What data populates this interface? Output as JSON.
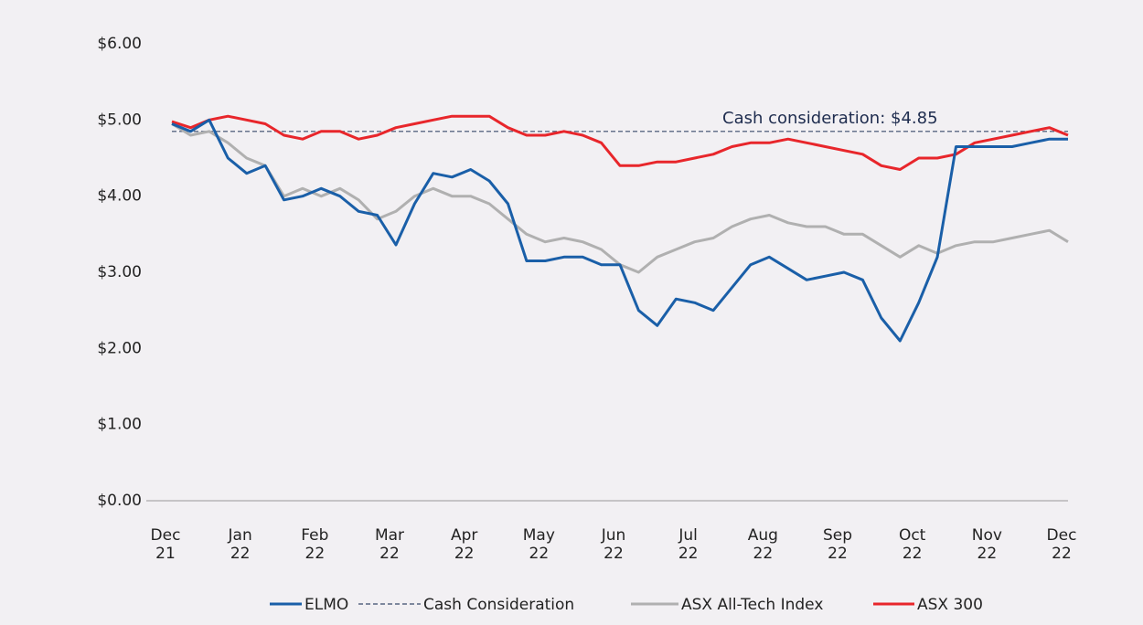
{
  "chart_data": {
    "type": "line",
    "annotation": "Cash consideration: $4.85",
    "categories": [
      "Dec 21",
      null,
      null,
      null,
      "Jan 22",
      null,
      null,
      null,
      "Feb 22",
      null,
      null,
      null,
      "Mar 22",
      null,
      null,
      null,
      "Apr 22",
      null,
      null,
      null,
      "May 22",
      null,
      null,
      null,
      "Jun 22",
      null,
      null,
      null,
      "Jul 22",
      null,
      null,
      null,
      "Aug 22",
      null,
      null,
      null,
      "Sep 22",
      null,
      null,
      null,
      "Oct 22",
      null,
      null,
      null,
      "Nov 22",
      null,
      null,
      null,
      "Dec 22"
    ],
    "series": [
      {
        "name": "ELMO",
        "color": "#1a5fa8",
        "values": [
          4.95,
          4.85,
          5.0,
          4.5,
          4.3,
          4.4,
          3.95,
          4.0,
          4.1,
          4.0,
          3.8,
          3.75,
          3.36,
          3.9,
          4.3,
          4.25,
          4.35,
          4.2,
          3.9,
          3.15,
          3.15,
          3.2,
          3.2,
          3.1,
          3.1,
          2.5,
          2.3,
          2.65,
          2.6,
          2.5,
          2.8,
          3.1,
          3.2,
          3.05,
          2.9,
          2.95,
          3.0,
          2.9,
          2.4,
          2.1,
          2.6,
          3.2,
          4.65,
          4.65,
          4.65,
          4.65,
          4.7,
          4.75,
          4.75
        ]
      },
      {
        "name": "Cash Consideration",
        "color": "#3a4a6b",
        "dashed": true,
        "values": [
          4.85,
          4.85,
          4.85,
          4.85,
          4.85,
          4.85,
          4.85,
          4.85,
          4.85,
          4.85,
          4.85,
          4.85,
          4.85,
          4.85,
          4.85,
          4.85,
          4.85,
          4.85,
          4.85,
          4.85,
          4.85,
          4.85,
          4.85,
          4.85,
          4.85,
          4.85,
          4.85,
          4.85,
          4.85,
          4.85,
          4.85,
          4.85,
          4.85,
          4.85,
          4.85,
          4.85,
          4.85,
          4.85,
          4.85,
          4.85,
          4.85,
          4.85,
          4.85,
          4.85,
          4.85,
          4.85,
          4.85,
          4.85,
          4.85
        ]
      },
      {
        "name": "ASX All-Tech Index",
        "color": "#b0b0b0",
        "values": [
          4.95,
          4.8,
          4.85,
          4.7,
          4.5,
          4.4,
          4.0,
          4.1,
          4.0,
          4.1,
          3.95,
          3.7,
          3.8,
          4.0,
          4.1,
          4.0,
          4.0,
          3.9,
          3.7,
          3.5,
          3.4,
          3.45,
          3.4,
          3.3,
          3.1,
          3.0,
          3.2,
          3.3,
          3.4,
          3.45,
          3.6,
          3.7,
          3.75,
          3.65,
          3.6,
          3.6,
          3.5,
          3.5,
          3.35,
          3.2,
          3.35,
          3.25,
          3.35,
          3.4,
          3.4,
          3.45,
          3.5,
          3.55,
          3.4
        ]
      },
      {
        "name": "ASX 300",
        "color": "#e8262b",
        "values": [
          4.98,
          4.9,
          5.0,
          5.05,
          5.0,
          4.95,
          4.8,
          4.75,
          4.85,
          4.85,
          4.75,
          4.8,
          4.9,
          4.95,
          5.0,
          5.05,
          5.05,
          5.05,
          4.9,
          4.8,
          4.8,
          4.85,
          4.8,
          4.7,
          4.4,
          4.4,
          4.45,
          4.45,
          4.5,
          4.55,
          4.65,
          4.7,
          4.7,
          4.75,
          4.7,
          4.65,
          4.6,
          4.55,
          4.4,
          4.35,
          4.5,
          4.5,
          4.55,
          4.7,
          4.75,
          4.8,
          4.85,
          4.9,
          4.8
        ]
      }
    ],
    "ylim": [
      0,
      6
    ],
    "yticks": [
      {
        "value": 0,
        "label": "$0.00"
      },
      {
        "value": 1,
        "label": "$1.00"
      },
      {
        "value": 2,
        "label": "$2.00"
      },
      {
        "value": 3,
        "label": "$3.00"
      },
      {
        "value": 4,
        "label": "$4.00"
      },
      {
        "value": 5,
        "label": "$5.00"
      },
      {
        "value": 6,
        "label": "$6.00"
      }
    ],
    "grid": false,
    "legend": "bottom"
  }
}
